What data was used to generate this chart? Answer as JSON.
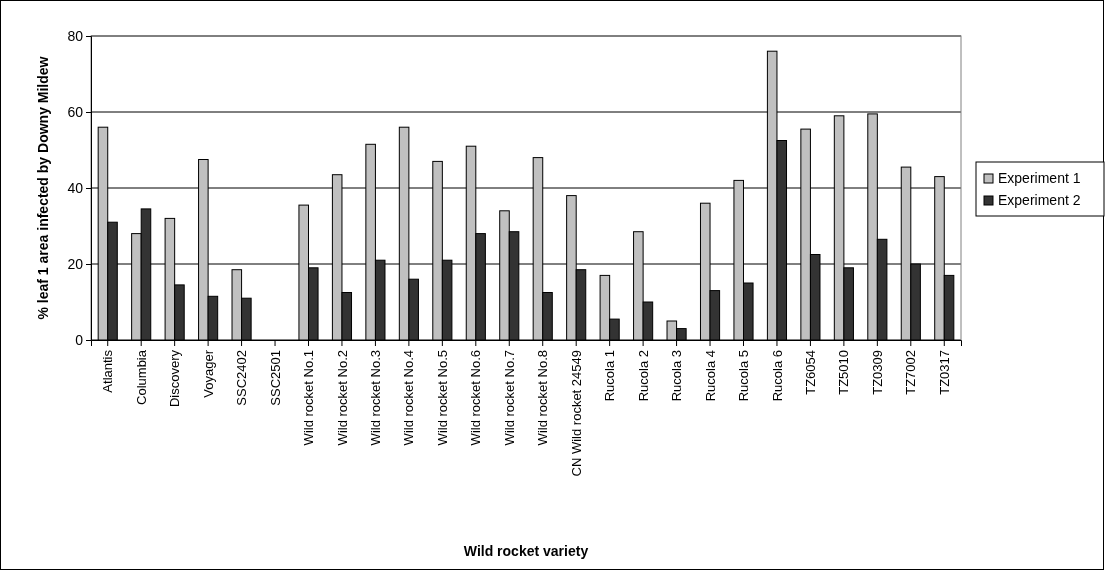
{
  "chart_data": {
    "type": "bar",
    "xlabel": "Wild rocket variety",
    "ylabel": "% leaf 1 area infected by Downy Mildew",
    "categories": [
      "Atlantis",
      "Columbia",
      "Discovery",
      "Voyager",
      "SSC2402",
      "SSC2501",
      "Wild rocket No.1",
      "Wild rocket No.2",
      "Wild rocket No.3",
      "Wild rocket No.4",
      "Wild rocket No.5",
      "Wild rocket No.6",
      "Wild rocket No.7",
      "Wild rocket No.8",
      "CN Wild rocket 24549",
      "Rucola 1",
      "Rucola 2",
      "Rucola 3",
      "Rucola 4",
      "Rucola 5",
      "Rucola 6",
      "TZ6054",
      "TZ5010",
      "TZ0309",
      "TZ7002",
      "TZ0317"
    ],
    "series": [
      {
        "name": "Experiment 1",
        "color": "#c0c0c0",
        "values": [
          56,
          28,
          32,
          47.5,
          18.5,
          null,
          35.5,
          43.5,
          51.5,
          56,
          47,
          51,
          34,
          48,
          38,
          17,
          28.5,
          5,
          36,
          42,
          76,
          55.5,
          59,
          59.5,
          45.5,
          43
        ]
      },
      {
        "name": "Experiment 2",
        "color": "#333333",
        "values": [
          31,
          34.5,
          14.5,
          11.5,
          11,
          null,
          19,
          12.5,
          21,
          16,
          21,
          28,
          28.5,
          12.5,
          18.5,
          5.5,
          10,
          3,
          13,
          15,
          52.5,
          22.5,
          19,
          26.5,
          20,
          17
        ]
      }
    ],
    "ylim": [
      0,
      80
    ],
    "yticks": [
      0,
      20,
      40,
      60,
      80
    ],
    "grid": "y",
    "legend": "right"
  }
}
